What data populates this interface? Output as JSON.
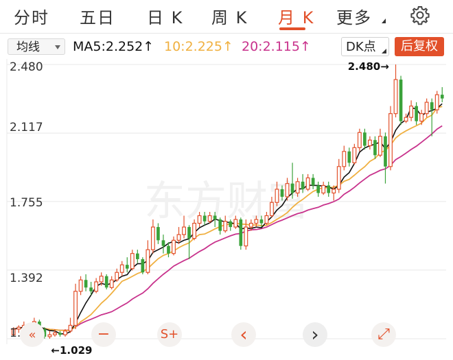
{
  "tabs": [
    {
      "label": "分时"
    },
    {
      "label": "五日"
    },
    {
      "label": "日 K"
    },
    {
      "label": "周 K"
    },
    {
      "label": "月 K"
    },
    {
      "label": "更多"
    }
  ],
  "ma_bar": {
    "select_label": "均线",
    "ma5": "MA5:2.252↑",
    "ma10": "10:2.225↑",
    "ma20": "20:2.115↑",
    "dk_label": "DK点",
    "fq_label": "后复权"
  },
  "colors": {
    "up": "#e2502a",
    "down": "#3aa23a",
    "ma5": "#111111",
    "ma10": "#f0b040",
    "ma20": "#c8328c",
    "accent": "#e2502a"
  },
  "chart_data": {
    "type": "candlestick",
    "y_ticks": [
      "2.480",
      "2.117",
      "1.755",
      "1.392",
      "1.029"
    ],
    "ylim": [
      1.029,
      2.48
    ],
    "max_label": "2.480→",
    "min_label": "←1.029",
    "watermark": "东方财富",
    "candles": [
      [
        1.05,
        1.08,
        1.04,
        1.09
      ],
      [
        1.08,
        1.09,
        1.06,
        1.1
      ],
      [
        1.09,
        1.1,
        1.08,
        1.12
      ],
      [
        1.1,
        1.07,
        1.06,
        1.11
      ],
      [
        1.07,
        1.12,
        1.06,
        1.14
      ],
      [
        1.12,
        1.08,
        1.05,
        1.13
      ],
      [
        1.08,
        1.04,
        1.03,
        1.09
      ],
      [
        1.04,
        1.05,
        1.029,
        1.07
      ],
      [
        1.05,
        1.06,
        1.04,
        1.08
      ],
      [
        1.06,
        1.05,
        1.04,
        1.07
      ],
      [
        1.05,
        1.07,
        1.04,
        1.08
      ],
      [
        1.07,
        1.1,
        1.06,
        1.14
      ],
      [
        1.1,
        1.28,
        1.08,
        1.32
      ],
      [
        1.28,
        1.34,
        1.26,
        1.36
      ],
      [
        1.34,
        1.3,
        1.28,
        1.37
      ],
      [
        1.3,
        1.28,
        1.26,
        1.33
      ],
      [
        1.28,
        1.33,
        1.27,
        1.35
      ],
      [
        1.33,
        1.36,
        1.31,
        1.38
      ],
      [
        1.36,
        1.3,
        1.29,
        1.37
      ],
      [
        1.3,
        1.34,
        1.29,
        1.36
      ],
      [
        1.34,
        1.38,
        1.33,
        1.4
      ],
      [
        1.38,
        1.42,
        1.36,
        1.44
      ],
      [
        1.42,
        1.4,
        1.38,
        1.46
      ],
      [
        1.4,
        1.48,
        1.39,
        1.5
      ],
      [
        1.48,
        1.45,
        1.43,
        1.5
      ],
      [
        1.45,
        1.38,
        1.37,
        1.46
      ],
      [
        1.38,
        1.5,
        1.37,
        1.55
      ],
      [
        1.5,
        1.62,
        1.48,
        1.66
      ],
      [
        1.62,
        1.55,
        1.53,
        1.64
      ],
      [
        1.55,
        1.52,
        1.48,
        1.58
      ],
      [
        1.52,
        1.48,
        1.46,
        1.54
      ],
      [
        1.48,
        1.55,
        1.47,
        1.57
      ],
      [
        1.55,
        1.58,
        1.53,
        1.62
      ],
      [
        1.58,
        1.62,
        1.56,
        1.68
      ],
      [
        1.62,
        1.56,
        1.45,
        1.63
      ],
      [
        1.56,
        1.64,
        1.55,
        1.66
      ],
      [
        1.64,
        1.68,
        1.62,
        1.7
      ],
      [
        1.68,
        1.65,
        1.63,
        1.7
      ],
      [
        1.65,
        1.68,
        1.64,
        1.7
      ],
      [
        1.68,
        1.66,
        1.62,
        1.7
      ],
      [
        1.66,
        1.6,
        1.58,
        1.67
      ],
      [
        1.6,
        1.65,
        1.59,
        1.68
      ],
      [
        1.65,
        1.62,
        1.6,
        1.66
      ],
      [
        1.62,
        1.66,
        1.61,
        1.68
      ],
      [
        1.66,
        1.52,
        1.5,
        1.67
      ],
      [
        1.52,
        1.62,
        1.5,
        1.66
      ],
      [
        1.62,
        1.64,
        1.6,
        1.66
      ],
      [
        1.64,
        1.66,
        1.62,
        1.68
      ],
      [
        1.66,
        1.64,
        1.62,
        1.68
      ],
      [
        1.64,
        1.68,
        1.63,
        1.7
      ],
      [
        1.68,
        1.75,
        1.67,
        1.78
      ],
      [
        1.75,
        1.82,
        1.73,
        1.86
      ],
      [
        1.82,
        1.78,
        1.76,
        1.84
      ],
      [
        1.78,
        1.85,
        1.76,
        1.88
      ],
      [
        1.85,
        1.8,
        1.77,
        1.96
      ],
      [
        1.8,
        1.86,
        1.78,
        1.88
      ],
      [
        1.86,
        1.82,
        1.8,
        1.9
      ],
      [
        1.82,
        1.88,
        1.81,
        1.9
      ],
      [
        1.88,
        1.84,
        1.82,
        1.9
      ],
      [
        1.84,
        1.8,
        1.78,
        1.86
      ],
      [
        1.8,
        1.84,
        1.79,
        1.86
      ],
      [
        1.84,
        1.8,
        1.78,
        1.86
      ],
      [
        1.8,
        1.82,
        1.76,
        1.84
      ],
      [
        1.82,
        1.94,
        1.8,
        1.98
      ],
      [
        1.94,
        2.02,
        1.92,
        2.05
      ],
      [
        2.02,
        1.96,
        1.94,
        2.04
      ],
      [
        1.96,
        2.04,
        1.95,
        2.06
      ],
      [
        2.04,
        2.12,
        2.02,
        2.14
      ],
      [
        2.12,
        2.05,
        2.03,
        2.14
      ],
      [
        2.05,
        2.08,
        2.03,
        2.1
      ],
      [
        2.08,
        2.0,
        1.98,
        2.1
      ],
      [
        2.0,
        2.1,
        1.99,
        2.14
      ],
      [
        2.1,
        1.94,
        1.85,
        2.12
      ],
      [
        1.94,
        2.22,
        1.92,
        2.26
      ],
      [
        2.22,
        2.4,
        2.2,
        2.48
      ],
      [
        2.4,
        2.18,
        2.16,
        2.42
      ],
      [
        2.18,
        2.2,
        2.17,
        2.22
      ],
      [
        2.2,
        2.26,
        2.18,
        2.29
      ],
      [
        2.26,
        2.18,
        2.16,
        2.28
      ],
      [
        2.18,
        2.22,
        2.16,
        2.24
      ],
      [
        2.22,
        2.28,
        2.2,
        2.3
      ],
      [
        2.28,
        2.24,
        2.1,
        2.3
      ],
      [
        2.24,
        2.32,
        2.22,
        2.34
      ],
      [
        2.32,
        2.3,
        2.28,
        2.36
      ]
    ]
  },
  "controls": {
    "minus": "−",
    "s_plus": "S+",
    "prev": "‹",
    "next": "›",
    "expand": "⤢"
  }
}
